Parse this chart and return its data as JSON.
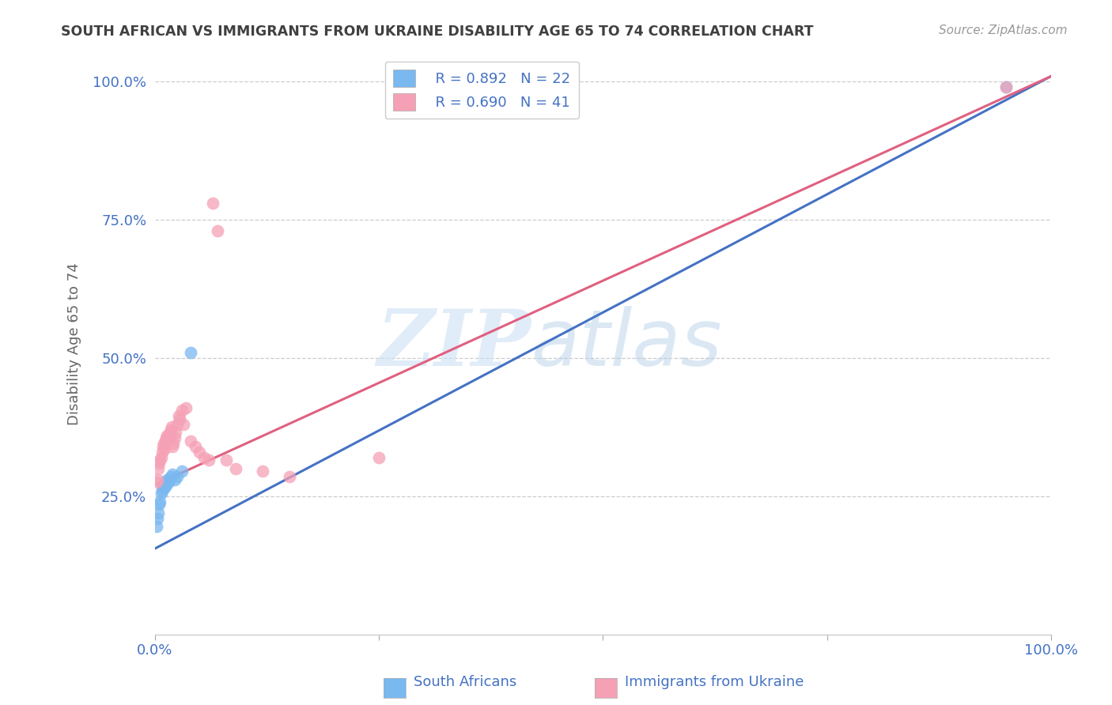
{
  "title": "SOUTH AFRICAN VS IMMIGRANTS FROM UKRAINE DISABILITY AGE 65 TO 74 CORRELATION CHART",
  "source": "Source: ZipAtlas.com",
  "ylabel": "Disability Age 65 to 74",
  "R1": 0.892,
  "N1": 22,
  "R2": 0.69,
  "N2": 41,
  "color_blue": "#7ab8f0",
  "color_pink": "#f5a0b5",
  "color_line_blue": "#4472c4",
  "color_line_pink": "#e06080",
  "color_axis_text": "#4472c4",
  "color_legend_text": "#4472c4",
  "background_color": "#ffffff",
  "grid_color": "#cccccc",
  "title_color": "#404040",
  "watermark_zip": "ZIP",
  "watermark_atlas": "atlas",
  "xlim": [
    0.0,
    1.0
  ],
  "ylim": [
    0.0,
    1.05
  ],
  "xticks": [
    0.0,
    0.25,
    0.5,
    0.75,
    1.0
  ],
  "yticks": [
    0.25,
    0.5,
    0.75,
    1.0
  ],
  "xtick_labels": [
    "0.0%",
    "",
    "",
    "",
    "100.0%"
  ],
  "ytick_labels": [
    "25.0%",
    "50.0%",
    "75.0%",
    "100.0%"
  ],
  "blue_x": [
    0.002,
    0.003,
    0.004,
    0.005,
    0.006,
    0.007,
    0.008,
    0.009,
    0.01,
    0.011,
    0.012,
    0.013,
    0.014,
    0.015,
    0.016,
    0.018,
    0.02,
    0.022,
    0.025,
    0.03,
    0.04,
    0.95
  ],
  "blue_y": [
    0.195,
    0.21,
    0.22,
    0.235,
    0.24,
    0.255,
    0.26,
    0.265,
    0.27,
    0.265,
    0.275,
    0.27,
    0.28,
    0.275,
    0.28,
    0.285,
    0.29,
    0.28,
    0.285,
    0.295,
    0.51,
    0.99
  ],
  "pink_x": [
    0.002,
    0.003,
    0.004,
    0.005,
    0.006,
    0.007,
    0.008,
    0.009,
    0.01,
    0.011,
    0.012,
    0.013,
    0.014,
    0.015,
    0.016,
    0.017,
    0.018,
    0.019,
    0.02,
    0.021,
    0.022,
    0.023,
    0.025,
    0.027,
    0.028,
    0.03,
    0.032,
    0.035,
    0.04,
    0.045,
    0.05,
    0.055,
    0.06,
    0.065,
    0.07,
    0.08,
    0.09,
    0.12,
    0.15,
    0.25,
    0.95
  ],
  "pink_y": [
    0.275,
    0.28,
    0.3,
    0.31,
    0.315,
    0.32,
    0.33,
    0.34,
    0.345,
    0.335,
    0.35,
    0.355,
    0.36,
    0.36,
    0.355,
    0.365,
    0.37,
    0.375,
    0.34,
    0.345,
    0.355,
    0.365,
    0.38,
    0.395,
    0.39,
    0.405,
    0.38,
    0.41,
    0.35,
    0.34,
    0.33,
    0.32,
    0.315,
    0.78,
    0.73,
    0.315,
    0.3,
    0.295,
    0.285,
    0.32,
    0.99
  ],
  "blue_line_x0": 0.0,
  "blue_line_y0": 0.155,
  "blue_line_x1": 1.0,
  "blue_line_y1": 1.01,
  "pink_line_x0": 0.0,
  "pink_line_y0": 0.27,
  "pink_line_x1": 1.0,
  "pink_line_y1": 1.01
}
